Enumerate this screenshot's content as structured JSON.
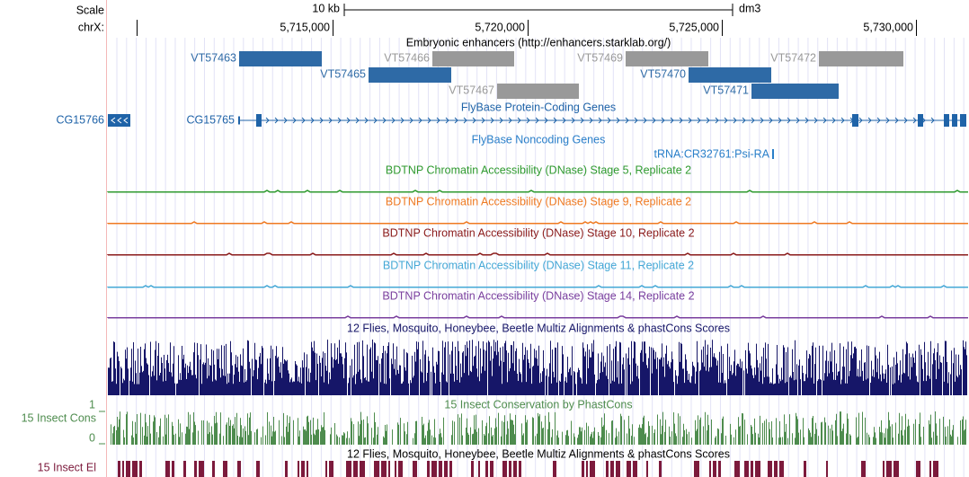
{
  "ruler": {
    "scale_label": "Scale",
    "chrom_label": "chrX:",
    "scale_bar": "10 kb",
    "assembly": "dm3",
    "ticks": [
      "5,715,000",
      "5,720,000",
      "5,725,000",
      "5,730,000"
    ]
  },
  "enhancers": {
    "title": "Embryonic enhancers (http://enhancers.starklab.org/)",
    "items": [
      {
        "name": "VT57463",
        "color": "#2e6aa6"
      },
      {
        "name": "VT57466",
        "color": "#999999"
      },
      {
        "name": "VT57469",
        "color": "#999999"
      },
      {
        "name": "VT57472",
        "color": "#999999"
      },
      {
        "name": "VT57465",
        "color": "#2e6aa6"
      },
      {
        "name": "VT57470",
        "color": "#2e6aa6"
      },
      {
        "name": "VT57467",
        "color": "#999999"
      },
      {
        "name": "VT57471",
        "color": "#2e6aa6"
      }
    ]
  },
  "genes": {
    "title": "FlyBase Protein-Coding Genes",
    "items": [
      "CG15766",
      "CG15765"
    ],
    "color": "#1f63a8"
  },
  "noncoding": {
    "title": "FlyBase Noncoding Genes",
    "items": [
      "tRNA:CR32761:Psi-RA"
    ],
    "color": "#2a7fc9"
  },
  "dnase": [
    {
      "title": "BDTNP Chromatin Accessibility (DNase) Stage 5, Replicate 2",
      "color": "#2f9a2f"
    },
    {
      "title": "BDTNP Chromatin Accessibility (DNase) Stage 9, Replicate 2",
      "color": "#ef7a22"
    },
    {
      "title": "BDTNP Chromatin Accessibility (DNase) Stage 10, Replicate 2",
      "color": "#8a1a1a"
    },
    {
      "title": "BDTNP Chromatin Accessibility (DNase) Stage 11, Replicate 2",
      "color": "#45a8d6"
    },
    {
      "title": "BDTNP Chromatin Accessibility (DNase) Stage 14, Replicate 2",
      "color": "#7a3f9e"
    }
  ],
  "multiz": {
    "title": "12 Flies, Mosquito, Honeybee, Beetle Multiz Alignments & phastCons Scores",
    "color": "#161668"
  },
  "phastcons": {
    "title": "15 Insect Conservation by PhastCons",
    "track_label": "15 Insect Cons",
    "axis": [
      "1",
      "0"
    ],
    "color": "#4e8c4e"
  },
  "elements": {
    "title": "12 Flies, Mosquito, Honeybee, Beetle Multiz Alignments & phastCons Scores",
    "track_label": "15 Insect El",
    "color": "#7c1a3c"
  }
}
